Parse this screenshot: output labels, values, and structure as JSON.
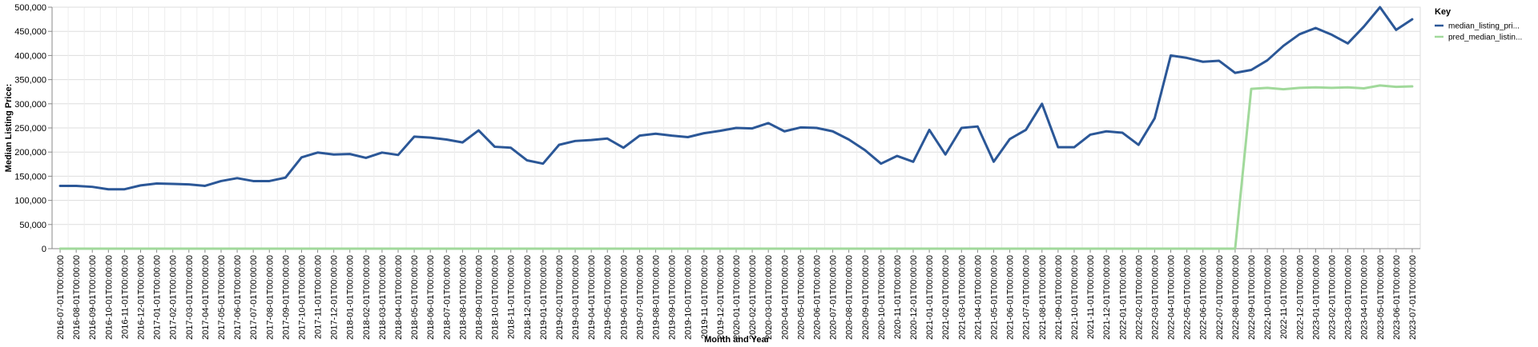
{
  "chart_data": {
    "type": "line",
    "title": "",
    "xlabel": "Month and Year",
    "ylabel": "Median Listing Price:",
    "ylim": [
      0,
      500000
    ],
    "yticks": [
      "0",
      "50,000",
      "100,000",
      "150,000",
      "200,000",
      "250,000",
      "300,000",
      "350,000",
      "400,000",
      "450,000",
      "500,000"
    ],
    "grid": true,
    "legend": {
      "title": "Key",
      "position": "top-right",
      "entries": [
        "median_listing_pri...",
        "pred_median_listin..."
      ]
    },
    "x": [
      "2016-07-01T00:00:00",
      "2016-08-01T00:00:00",
      "2016-09-01T00:00:00",
      "2016-10-01T00:00:00",
      "2016-11-01T00:00:00",
      "2016-12-01T00:00:00",
      "2017-01-01T00:00:00",
      "2017-02-01T00:00:00",
      "2017-03-01T00:00:00",
      "2017-04-01T00:00:00",
      "2017-05-01T00:00:00",
      "2017-06-01T00:00:00",
      "2017-07-01T00:00:00",
      "2017-08-01T00:00:00",
      "2017-09-01T00:00:00",
      "2017-10-01T00:00:00",
      "2017-11-01T00:00:00",
      "2017-12-01T00:00:00",
      "2018-01-01T00:00:00",
      "2018-02-01T00:00:00",
      "2018-03-01T00:00:00",
      "2018-04-01T00:00:00",
      "2018-05-01T00:00:00",
      "2018-06-01T00:00:00",
      "2018-07-01T00:00:00",
      "2018-08-01T00:00:00",
      "2018-09-01T00:00:00",
      "2018-10-01T00:00:00",
      "2018-11-01T00:00:00",
      "2018-12-01T00:00:00",
      "2019-01-01T00:00:00",
      "2019-02-01T00:00:00",
      "2019-03-01T00:00:00",
      "2019-04-01T00:00:00",
      "2019-05-01T00:00:00",
      "2019-06-01T00:00:00",
      "2019-07-01T00:00:00",
      "2019-08-01T00:00:00",
      "2019-09-01T00:00:00",
      "2019-10-01T00:00:00",
      "2019-11-01T00:00:00",
      "2019-12-01T00:00:00",
      "2020-01-01T00:00:00",
      "2020-02-01T00:00:00",
      "2020-03-01T00:00:00",
      "2020-04-01T00:00:00",
      "2020-05-01T00:00:00",
      "2020-06-01T00:00:00",
      "2020-07-01T00:00:00",
      "2020-08-01T00:00:00",
      "2020-09-01T00:00:00",
      "2020-10-01T00:00:00",
      "2020-11-01T00:00:00",
      "2020-12-01T00:00:00",
      "2021-01-01T00:00:00",
      "2021-02-01T00:00:00",
      "2021-03-01T00:00:00",
      "2021-04-01T00:00:00",
      "2021-05-01T00:00:00",
      "2021-06-01T00:00:00",
      "2021-07-01T00:00:00",
      "2021-08-01T00:00:00",
      "2021-09-01T00:00:00",
      "2021-10-01T00:00:00",
      "2021-11-01T00:00:00",
      "2021-12-01T00:00:00",
      "2022-01-01T00:00:00",
      "2022-02-01T00:00:00",
      "2022-03-01T00:00:00",
      "2022-04-01T00:00:00",
      "2022-05-01T00:00:00",
      "2022-06-01T00:00:00",
      "2022-07-01T00:00:00",
      "2022-08-01T00:00:00",
      "2022-09-01T00:00:00",
      "2022-10-01T00:00:00",
      "2022-11-01T00:00:00",
      "2022-12-01T00:00:00",
      "2023-01-01T00:00:00",
      "2023-02-01T00:00:00",
      "2023-03-01T00:00:00",
      "2023-04-01T00:00:00",
      "2023-05-01T00:00:00",
      "2023-06-01T00:00:00",
      "2023-07-01T00:00:00"
    ],
    "series": [
      {
        "name": "median_listing_pri...",
        "color": "#2b5797",
        "values": [
          130000,
          130000,
          128000,
          123000,
          123000,
          131000,
          135000,
          134000,
          133000,
          130000,
          140000,
          146000,
          140000,
          140000,
          147000,
          189000,
          199000,
          195000,
          196000,
          188000,
          199000,
          194000,
          232000,
          230000,
          226000,
          220000,
          245000,
          211000,
          209000,
          183000,
          176000,
          215000,
          223000,
          225000,
          228000,
          209000,
          234000,
          238000,
          234000,
          231000,
          239000,
          244000,
          250000,
          249000,
          260000,
          243000,
          251000,
          250000,
          243000,
          226000,
          204000,
          176000,
          192000,
          180000,
          246000,
          195000,
          250000,
          253000,
          180000,
          227000,
          246000,
          300000,
          210000,
          210000,
          236000,
          243000,
          240000,
          215000,
          270000,
          400000,
          395000,
          387000,
          389000,
          364000,
          370000,
          390000,
          420000,
          444000,
          457000,
          443000,
          425000,
          460000,
          500000,
          453000,
          475000
        ]
      },
      {
        "name": "pred_median_listin...",
        "color": "#a1d99b",
        "values": [
          0,
          0,
          0,
          0,
          0,
          0,
          0,
          0,
          0,
          0,
          0,
          0,
          0,
          0,
          0,
          0,
          0,
          0,
          0,
          0,
          0,
          0,
          0,
          0,
          0,
          0,
          0,
          0,
          0,
          0,
          0,
          0,
          0,
          0,
          0,
          0,
          0,
          0,
          0,
          0,
          0,
          0,
          0,
          0,
          0,
          0,
          0,
          0,
          0,
          0,
          0,
          0,
          0,
          0,
          0,
          0,
          0,
          0,
          0,
          0,
          0,
          0,
          0,
          0,
          0,
          0,
          0,
          0,
          0,
          0,
          0,
          0,
          0,
          0,
          331000,
          333000,
          330000,
          333000,
          334000,
          333000,
          334000,
          332000,
          338000,
          335000,
          336000
        ]
      }
    ]
  }
}
